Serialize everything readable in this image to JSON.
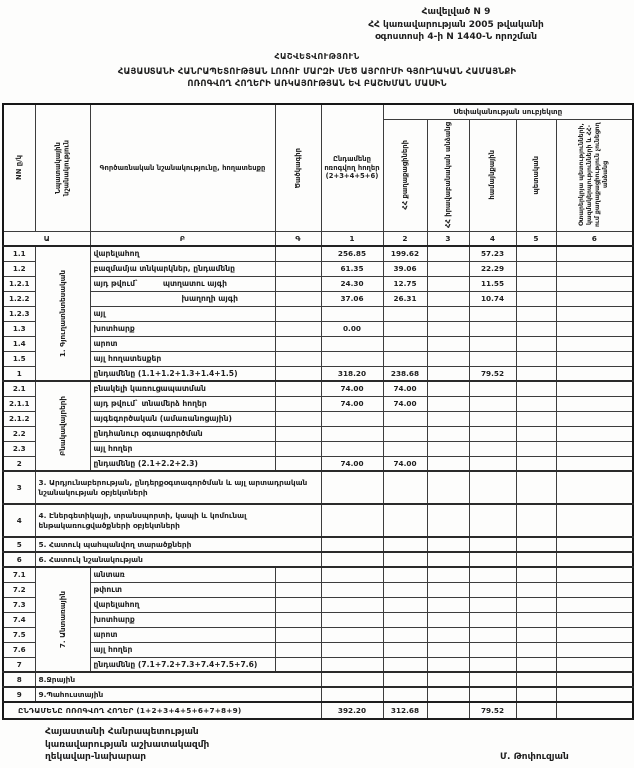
{
  "page": {
    "annex": [
      "Հավելված N 9",
      "ՀՀ կառավարության 2005 թվականի",
      "օգոստոսի 4-ի N 1440-Ն որոշման"
    ],
    "report_label": "ՀԱՇՎԵՏՎՈՒԹՅՈՒՆ",
    "title_line1": "ՀԱՅԱՍՏԱՆԻ ՀԱՆՐԱՊԵՏՈՒԹՅԱՆ ԼՈՌՈՒ ՄԱՐԶԻ ՄԵԾ ԱՅՐՈՒՄԻ  ԳՅՈՒՂԱԿԱՆ ՀԱՄԱՅՆՔԻ",
    "title_line2": "ՈՌՈԳՎՈՂ ՀՈՂԵՐԻ ԱՌԿԱՅՈՒԹՅԱՆ ԵՎ ԲԱՇԽՄԱՆ ՄԱՍԻՆ"
  },
  "table": {
    "headers": {
      "num": "NN ը/կ",
      "purpose": "Նպատակային նշանակություն",
      "functional": "Գործառնական նշանակությունը, հողատեսքը",
      "code": "Ծածկագիր",
      "total": "Ընդամենը ոռոգվող հողեր (2+3+4+5+6)",
      "ownership": "Սեփականության սուբյեկտը",
      "owners": [
        "ՀՀ քաղաքացիների",
        "ՀՀ իրավաբանական անձանց",
        "համայնքային",
        "պետական",
        "Օտարերկրյա պետությունների, կազմակերպությունների և ՀՀ-ում քաղաքացիություն չունեցող անձանց"
      ]
    },
    "letters": [
      "Ա",
      "Բ",
      "Գ",
      "1",
      "2",
      "3",
      "4",
      "5",
      "6"
    ],
    "sections": {
      "s1": {
        "label": "1. Գյուղատնտեսական",
        "span": 9
      },
      "s2": {
        "label": "Բնակավայրերի",
        "span": 6
      },
      "s7": {
        "label": "7. Անտառային",
        "span": 7
      }
    },
    "rows": [
      {
        "num": "1.1",
        "sec": "s1",
        "label": "վարելահող",
        "vals": [
          "256.85",
          "199.62",
          "",
          "57.23",
          "",
          ""
        ]
      },
      {
        "num": "1.2",
        "label": "բազմամյա տնկարկներ, ընդամենը",
        "vals": [
          "61.35",
          "39.06",
          "",
          "22.29",
          "",
          ""
        ]
      },
      {
        "num": "1.2.1",
        "label": "այդ թվում`",
        "label2": "պտղատու այգի",
        "vals": [
          "24.30",
          "12.75",
          "",
          "11.55",
          "",
          ""
        ]
      },
      {
        "num": "1.2.2",
        "label": "",
        "label2": "խաղողի այգի",
        "vals": [
          "37.06",
          "26.31",
          "",
          "10.74",
          "",
          ""
        ]
      },
      {
        "num": "1.2.3",
        "label": "այլ",
        "vals": [
          "",
          "",
          "",
          "",
          "",
          ""
        ]
      },
      {
        "num": "1.3",
        "label": "խոտհարք",
        "vals": [
          "0.00",
          "",
          "",
          "",
          "",
          ""
        ]
      },
      {
        "num": "1.4",
        "label": "արոտ",
        "vals": [
          "",
          "",
          "",
          "",
          "",
          ""
        ]
      },
      {
        "num": "1.5",
        "label": "այլ հողատեսքեր",
        "vals": [
          "",
          "",
          "",
          "",
          "",
          ""
        ]
      },
      {
        "num": "1",
        "label": "ընդամենը (1.1+1.2+1.3+1.4+1.5)",
        "vals": [
          "318.20",
          "238.68",
          "",
          "79.52",
          "",
          ""
        ]
      },
      {
        "num": "2.1",
        "sec": "s2",
        "label": "բնակելի կառուցապատման",
        "vals": [
          "74.00",
          "74.00",
          "",
          "",
          "",
          ""
        ]
      },
      {
        "num": "2.1.1",
        "label": "այդ թվում` տնամերձ հողեր",
        "vals": [
          "74.00",
          "74.00",
          "",
          "",
          "",
          ""
        ]
      },
      {
        "num": "2.1.2",
        "label": "այգեգործական (ամառանոցային)",
        "vals": [
          "",
          "",
          "",
          "",
          "",
          ""
        ]
      },
      {
        "num": "2.2",
        "label": "ընդհանուր օգտագործման",
        "vals": [
          "",
          "",
          "",
          "",
          "",
          ""
        ]
      },
      {
        "num": "2.3",
        "label": "այլ հողեր",
        "vals": [
          "",
          "",
          "",
          "",
          "",
          ""
        ]
      },
      {
        "num": "2",
        "label": "ընդամենը (2.1+2.2+2.3)",
        "vals": [
          "74.00",
          "74.00",
          "",
          "",
          "",
          ""
        ]
      },
      {
        "num": "3",
        "wide": true,
        "tall": true,
        "label": "3. Արդյունաբերության, ընդերքօգտագործման և այլ արտադրական նշանակության օբյեկտների",
        "vals": [
          "",
          "",
          "",
          "",
          "",
          ""
        ]
      },
      {
        "num": "4",
        "wide": true,
        "tall": true,
        "label": "4. Էներգետիկայի, տրանսպորտի, կապի և կոմունալ ենթակառուցվածքների օբյեկտների",
        "vals": [
          "",
          "",
          "",
          "",
          "",
          ""
        ]
      },
      {
        "num": "5",
        "wide": true,
        "label": "5. Հատուկ պահպանվող տարածքների",
        "vals": [
          "",
          "",
          "",
          "",
          "",
          ""
        ]
      },
      {
        "num": "6",
        "wide": true,
        "label": "6. Հատուկ նշանակության",
        "vals": [
          "",
          "",
          "",
          "",
          "",
          ""
        ]
      },
      {
        "num": "7.1",
        "sec": "s7",
        "label": "անտառ",
        "vals": [
          "",
          "",
          "",
          "",
          "",
          ""
        ]
      },
      {
        "num": "7.2",
        "label": "թփուտ",
        "vals": [
          "",
          "",
          "",
          "",
          "",
          ""
        ]
      },
      {
        "num": "7.3",
        "label": "վարելահող",
        "vals": [
          "",
          "",
          "",
          "",
          "",
          ""
        ]
      },
      {
        "num": "7.4",
        "label": "խոտհարք",
        "vals": [
          "",
          "",
          "",
          "",
          "",
          ""
        ]
      },
      {
        "num": "7.5",
        "label": "արոտ",
        "vals": [
          "",
          "",
          "",
          "",
          "",
          ""
        ]
      },
      {
        "num": "7.6",
        "label": "այլ հողեր",
        "vals": [
          "",
          "",
          "",
          "",
          "",
          ""
        ]
      },
      {
        "num": "7",
        "label": "ընդամենը (7.1+7.2+7.3+7.4+7.5+7.6)",
        "vals": [
          "",
          "",
          "",
          "",
          "",
          ""
        ]
      },
      {
        "num": "8",
        "wide": true,
        "label": "8.Ջրային",
        "vals": [
          "",
          "",
          "",
          "",
          "",
          ""
        ]
      },
      {
        "num": "9",
        "wide": true,
        "label": "9.Պահուստային",
        "vals": [
          "",
          "",
          "",
          "",
          "",
          ""
        ]
      },
      {
        "total": true,
        "label": "ԸՆԴԱՄԵՆԸ ՈՌՈԳՎՈՂ ՀՈՂԵՐ (1+2+3+4+5+6+7+8+9)",
        "vals": [
          "392.20",
          "312.68",
          "",
          "79.52",
          "",
          ""
        ]
      }
    ]
  },
  "footer": {
    "org_line1": "Հայաստանի Հանրապետության",
    "org_line2": "կառավարության աշխատակազմի",
    "org_line3": "ղեկավար-նախարար",
    "name": "Մ. Թոփուզյան"
  }
}
